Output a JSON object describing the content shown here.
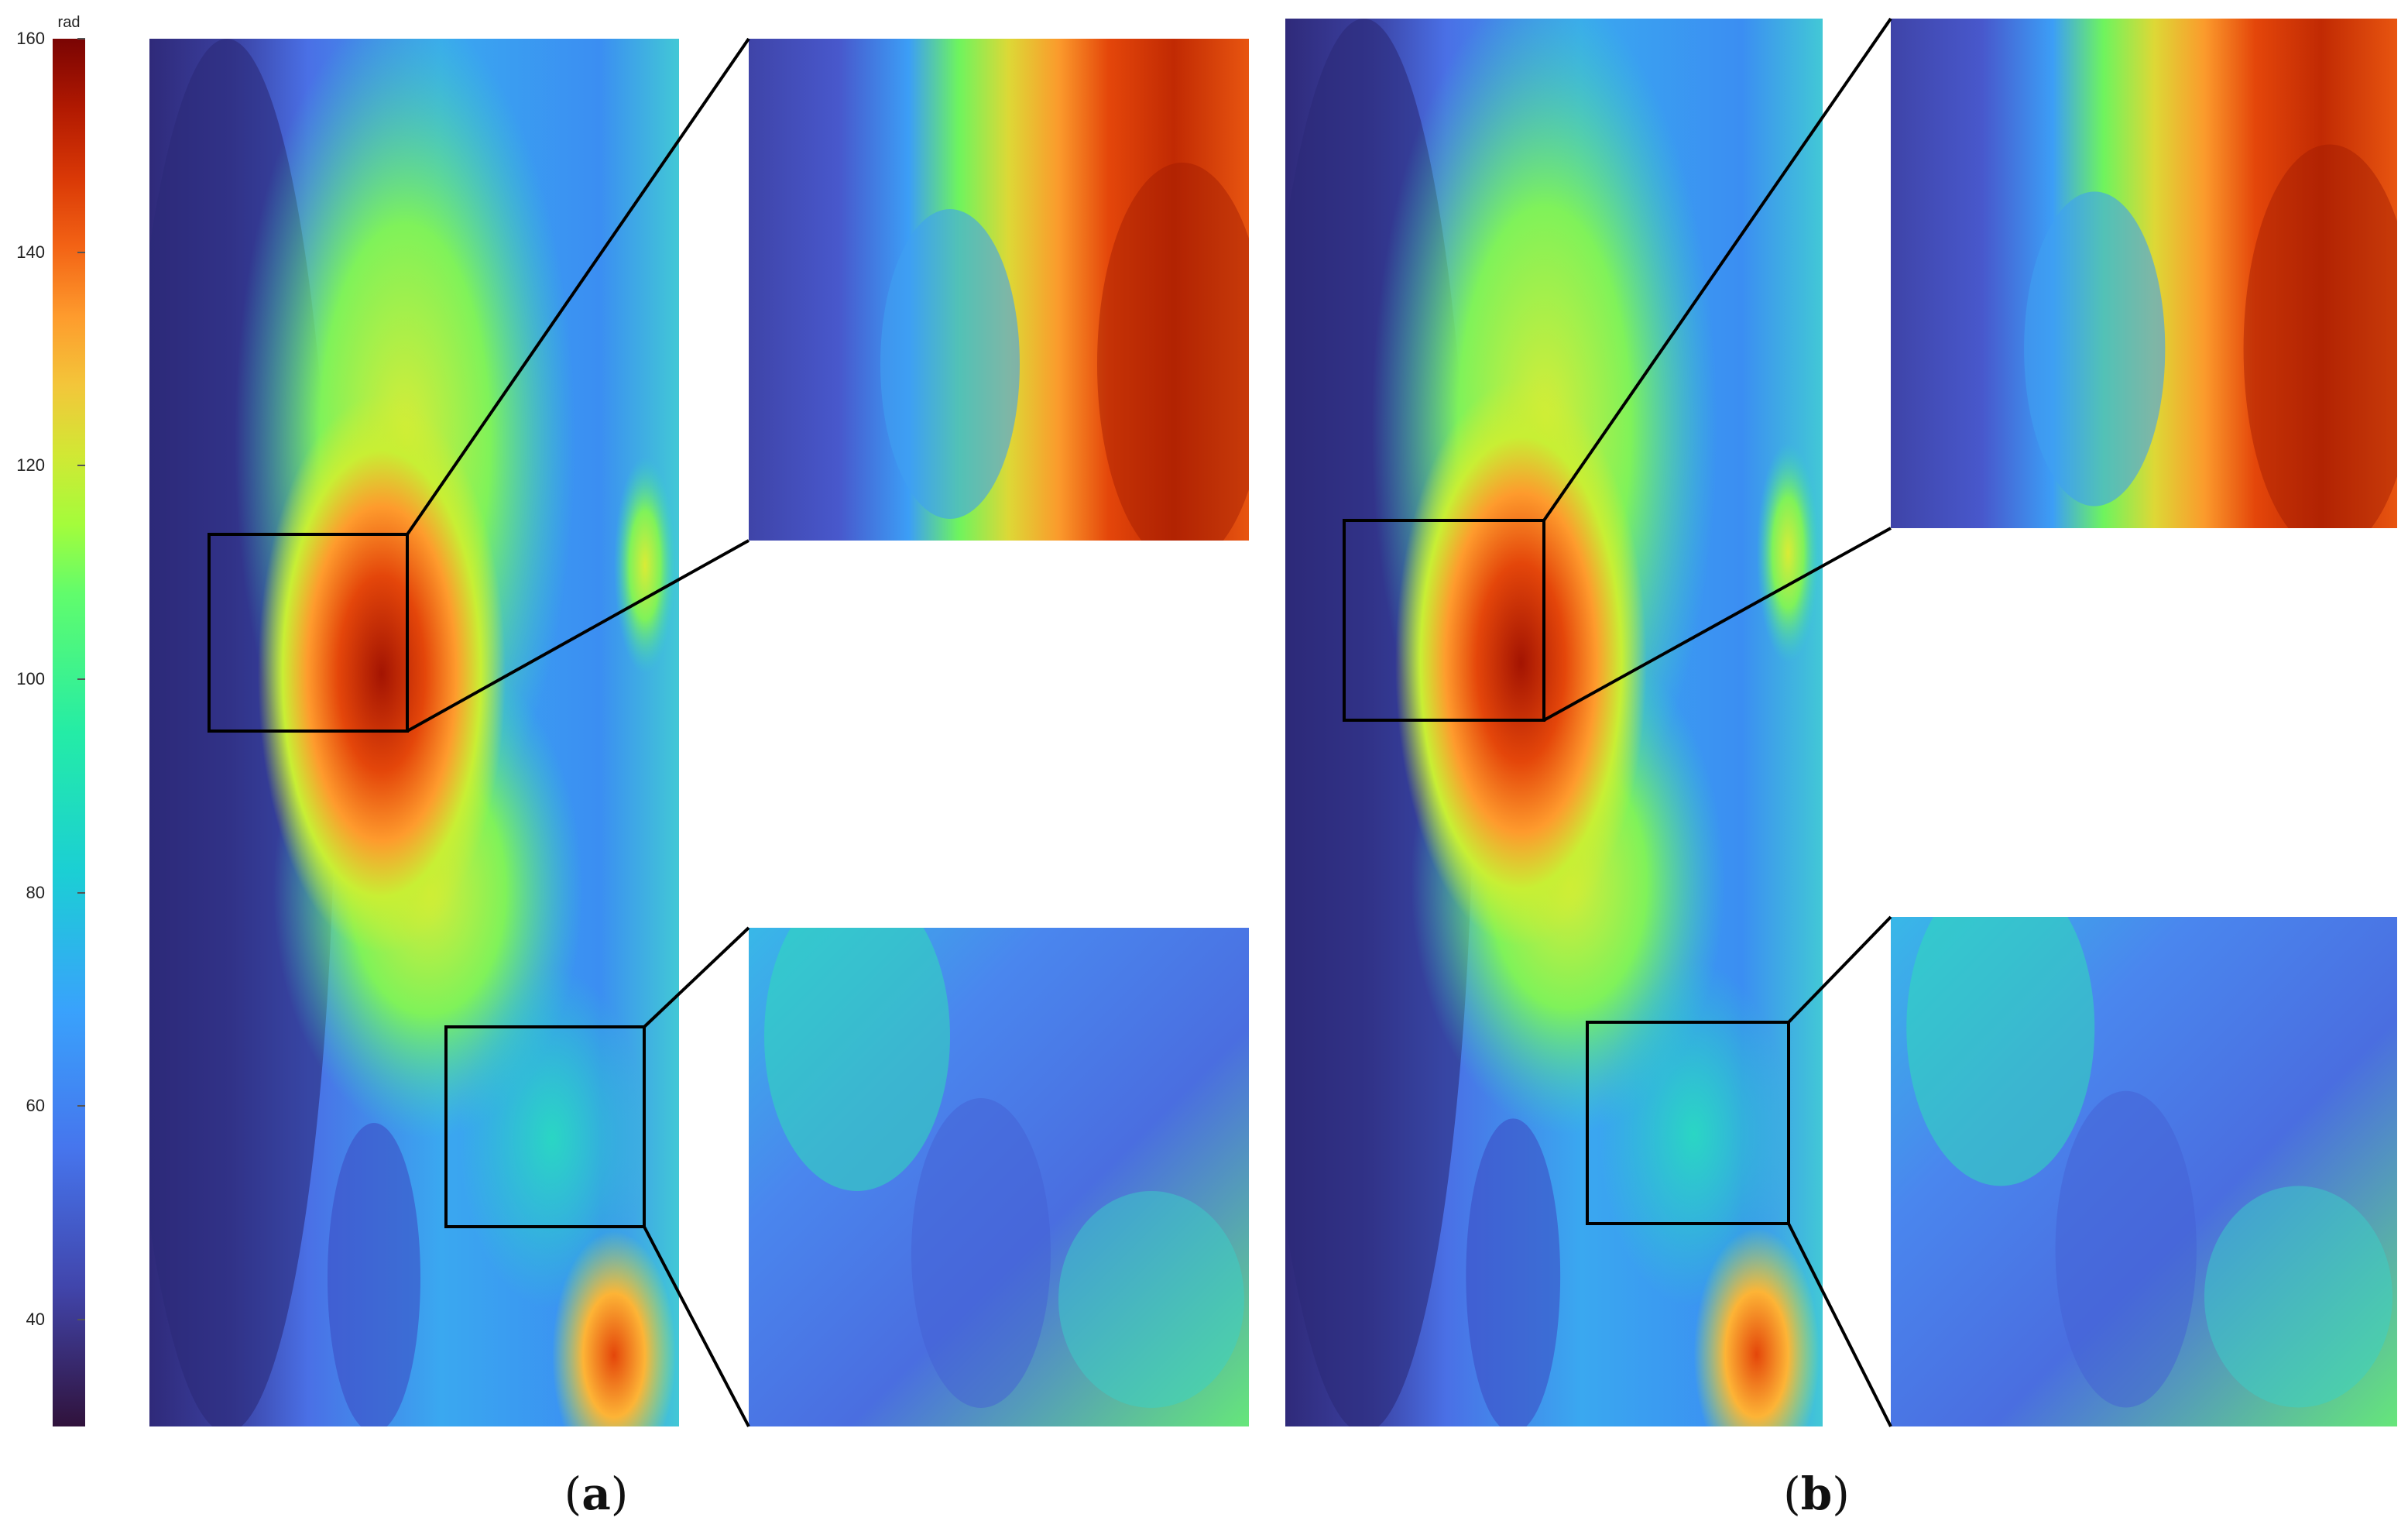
{
  "colorbar": {
    "unit": "rad",
    "min": 30,
    "max": 160,
    "ticks": [
      "160",
      "140",
      "120",
      "100",
      "80",
      "60",
      "40"
    ],
    "tick_values": [
      160,
      140,
      120,
      100,
      80,
      60,
      40
    ],
    "colormap": "turbo"
  },
  "panels": [
    {
      "open": "(",
      "letter": "a",
      "close": ")",
      "zoom_boxes": 2
    },
    {
      "open": "(",
      "letter": "b",
      "close": ")",
      "zoom_boxes": 2
    }
  ],
  "colors": {
    "dark": "#30123b",
    "blue": "#4662d7",
    "cyan": "#1ae4b6",
    "green": "#72fe5e",
    "yellow": "#c8ef34",
    "orange": "#faba39",
    "red": "#e4460a",
    "darkred": "#7a0403",
    "frame": "#000000"
  }
}
